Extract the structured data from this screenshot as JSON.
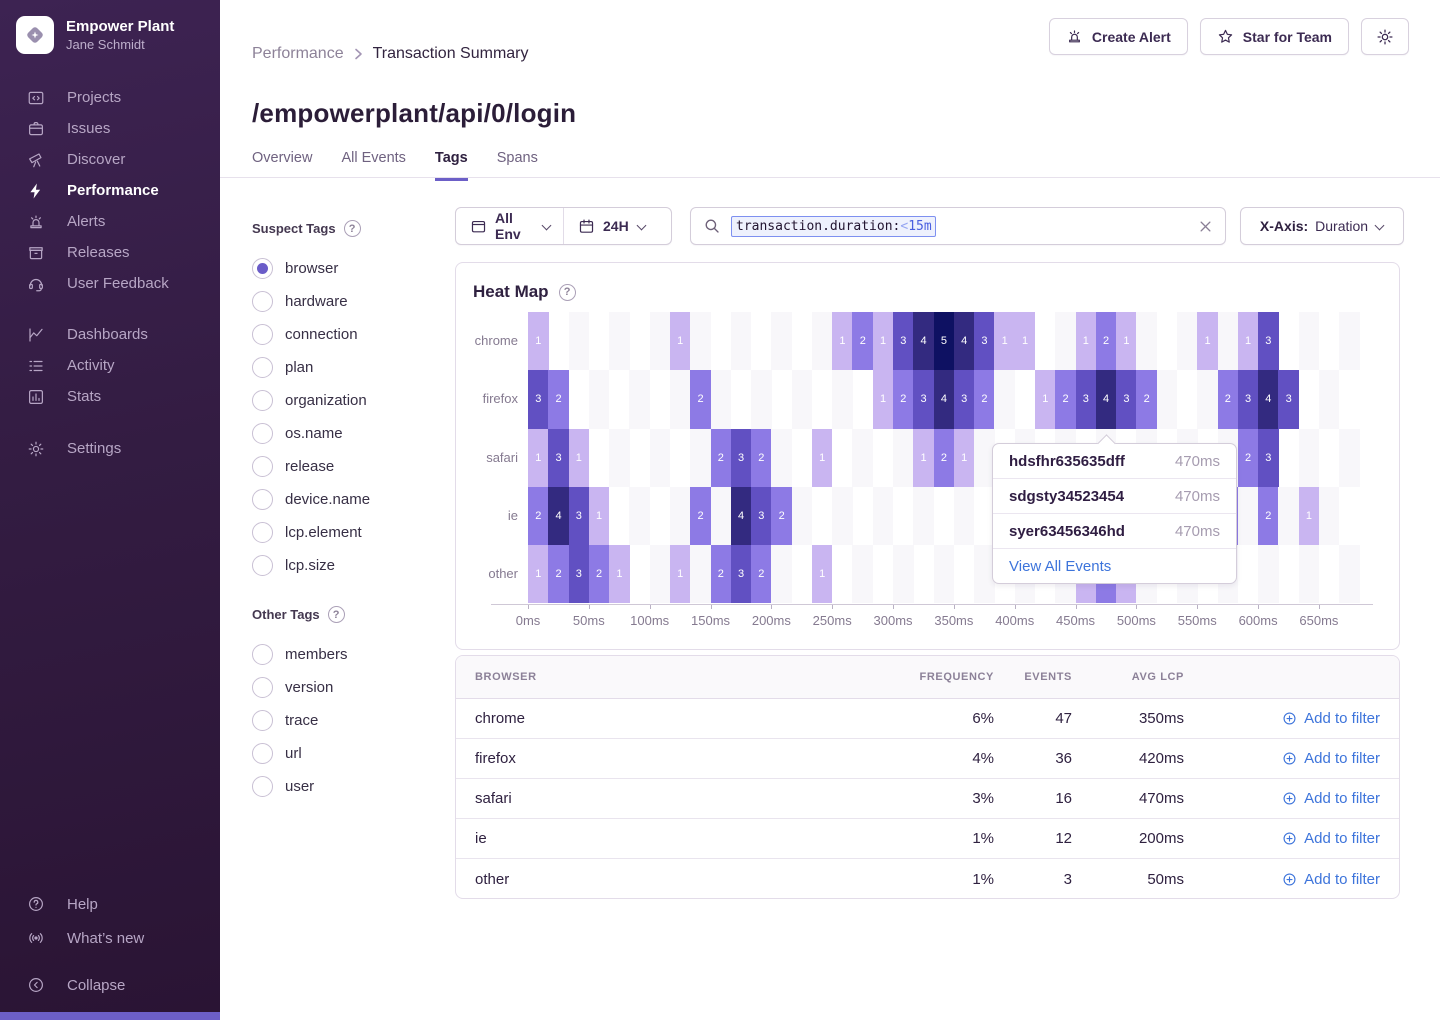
{
  "sidebar": {
    "org_name": "Empower Plant",
    "user_name": "Jane Schmidt",
    "primary_items": [
      {
        "label": "Projects",
        "icon": "projects-icon"
      },
      {
        "label": "Issues",
        "icon": "issues-icon"
      },
      {
        "label": "Discover",
        "icon": "discover-icon"
      },
      {
        "label": "Performance",
        "icon": "performance-icon",
        "active": true
      },
      {
        "label": "Alerts",
        "icon": "alerts-icon"
      },
      {
        "label": "Releases",
        "icon": "releases-icon"
      },
      {
        "label": "User Feedback",
        "icon": "user-feedback-icon"
      }
    ],
    "secondary_items": [
      {
        "label": "Dashboards",
        "icon": "dashboards-icon"
      },
      {
        "label": "Activity",
        "icon": "activity-icon"
      },
      {
        "label": "Stats",
        "icon": "stats-icon"
      }
    ],
    "settings_label": "Settings",
    "footer_items": [
      {
        "label": "Help",
        "icon": "help-icon"
      },
      {
        "label": "What’s new",
        "icon": "whats-new-icon"
      },
      {
        "label": "Collapse",
        "icon": "collapse-icon"
      }
    ]
  },
  "header": {
    "breadcrumb": {
      "parent": "Performance",
      "current": "Transaction Summary"
    },
    "buttons": {
      "create_alert": "Create Alert",
      "star_for_team": "Star for Team"
    },
    "title": "/empowerplant/api/0/login",
    "tabs": [
      "Overview",
      "All Events",
      "Tags",
      "Spans"
    ],
    "active_tab": "Tags"
  },
  "filters": {
    "env_label": "All Env",
    "time_label": "24H",
    "search_token": {
      "key": "transaction.duration:",
      "op": "<",
      "value": "15m"
    },
    "xaxis_label": "X-Axis:",
    "xaxis_value": "Duration"
  },
  "suspect_tags": {
    "title": "Suspect Tags",
    "items": [
      {
        "label": "browser",
        "selected": true
      },
      {
        "label": "hardware",
        "selected": false
      },
      {
        "label": "connection",
        "selected": false
      },
      {
        "label": "plan",
        "selected": false
      },
      {
        "label": "organization",
        "selected": false
      },
      {
        "label": "os.name",
        "selected": false
      },
      {
        "label": "release",
        "selected": false
      },
      {
        "label": "device.name",
        "selected": false
      },
      {
        "label": "lcp.element",
        "selected": false
      },
      {
        "label": "lcp.size",
        "selected": false
      }
    ]
  },
  "other_tags": {
    "title": "Other Tags",
    "items": [
      {
        "label": "members",
        "selected": false
      },
      {
        "label": "version",
        "selected": false
      },
      {
        "label": "trace",
        "selected": false
      },
      {
        "label": "url",
        "selected": false
      },
      {
        "label": "user",
        "selected": false
      }
    ]
  },
  "heatmap": {
    "title": "Heat Map",
    "type": "heatmap",
    "rows": [
      "chrome",
      "firefox",
      "safari",
      "ie",
      "other"
    ],
    "cols": 41,
    "col_width_ms": 16.67,
    "x_ticks": [
      "0ms",
      "50ms",
      "100ms",
      "150ms",
      "200ms",
      "250ms",
      "300ms",
      "350ms",
      "400ms",
      "450ms",
      "500ms",
      "550ms",
      "600ms",
      "650ms"
    ],
    "value_colors": [
      "#c9b5f1",
      "#8d7ae5",
      "#6150c2",
      "#332a80",
      "#0e1162"
    ],
    "empty_check_color": "#f8f7fa",
    "cells": {
      "chrome": [
        [
          0,
          1
        ],
        [
          7,
          1
        ],
        [
          15,
          1
        ],
        [
          16,
          2
        ],
        [
          17,
          1
        ],
        [
          18,
          3
        ],
        [
          19,
          4
        ],
        [
          20,
          5
        ],
        [
          21,
          4
        ],
        [
          22,
          3
        ],
        [
          23,
          1
        ],
        [
          24,
          1
        ],
        [
          27,
          1
        ],
        [
          28,
          2
        ],
        [
          29,
          1
        ],
        [
          33,
          1
        ],
        [
          35,
          1
        ],
        [
          36,
          3
        ]
      ],
      "firefox": [
        [
          0,
          3
        ],
        [
          1,
          2
        ],
        [
          8,
          2
        ],
        [
          17,
          1
        ],
        [
          18,
          2
        ],
        [
          19,
          3
        ],
        [
          20,
          4
        ],
        [
          21,
          3
        ],
        [
          22,
          2
        ],
        [
          25,
          1
        ],
        [
          26,
          2
        ],
        [
          27,
          3
        ],
        [
          28,
          4
        ],
        [
          29,
          3
        ],
        [
          30,
          2
        ],
        [
          34,
          2
        ],
        [
          35,
          3
        ],
        [
          36,
          4
        ],
        [
          37,
          3
        ]
      ],
      "safari": [
        [
          0,
          1
        ],
        [
          1,
          3
        ],
        [
          2,
          1
        ],
        [
          9,
          2
        ],
        [
          10,
          3
        ],
        [
          11,
          2
        ],
        [
          14,
          1
        ],
        [
          19,
          1
        ],
        [
          20,
          2
        ],
        [
          21,
          1
        ],
        [
          35,
          2
        ],
        [
          36,
          3
        ]
      ],
      "ie": [
        [
          0,
          2
        ],
        [
          1,
          4
        ],
        [
          2,
          3
        ],
        [
          3,
          1
        ],
        [
          8,
          2
        ],
        [
          10,
          4
        ],
        [
          11,
          3
        ],
        [
          12,
          2
        ],
        [
          34,
          2
        ],
        [
          36,
          2
        ],
        [
          38,
          1
        ]
      ],
      "other": [
        [
          0,
          1
        ],
        [
          1,
          2
        ],
        [
          2,
          3
        ],
        [
          3,
          2
        ],
        [
          4,
          1
        ],
        [
          7,
          1
        ],
        [
          9,
          2
        ],
        [
          10,
          3
        ],
        [
          11,
          2
        ],
        [
          14,
          1
        ],
        [
          27,
          1
        ],
        [
          28,
          2
        ],
        [
          29,
          1
        ]
      ]
    }
  },
  "tooltip": {
    "events": [
      {
        "id": "hdsfhr635635dff",
        "duration": "470ms"
      },
      {
        "id": "sdgsty34523454",
        "duration": "470ms"
      },
      {
        "id": "syer63456346hd",
        "duration": "470ms"
      }
    ],
    "link": "View All Events"
  },
  "table": {
    "headers": [
      "Browser",
      "Frequency",
      "Events",
      "Avg LCP"
    ],
    "action_label": "Add to filter",
    "rows": [
      {
        "browser": "chrome",
        "frequency": "6%",
        "events": "47",
        "avg_lcp": "350ms"
      },
      {
        "browser": "firefox",
        "frequency": "4%",
        "events": "36",
        "avg_lcp": "420ms"
      },
      {
        "browser": "safari",
        "frequency": "3%",
        "events": "16",
        "avg_lcp": "470ms"
      },
      {
        "browser": "ie",
        "frequency": "1%",
        "events": "12",
        "avg_lcp": "200ms"
      },
      {
        "browser": "other",
        "frequency": "1%",
        "events": "3",
        "avg_lcp": "50ms"
      }
    ]
  }
}
